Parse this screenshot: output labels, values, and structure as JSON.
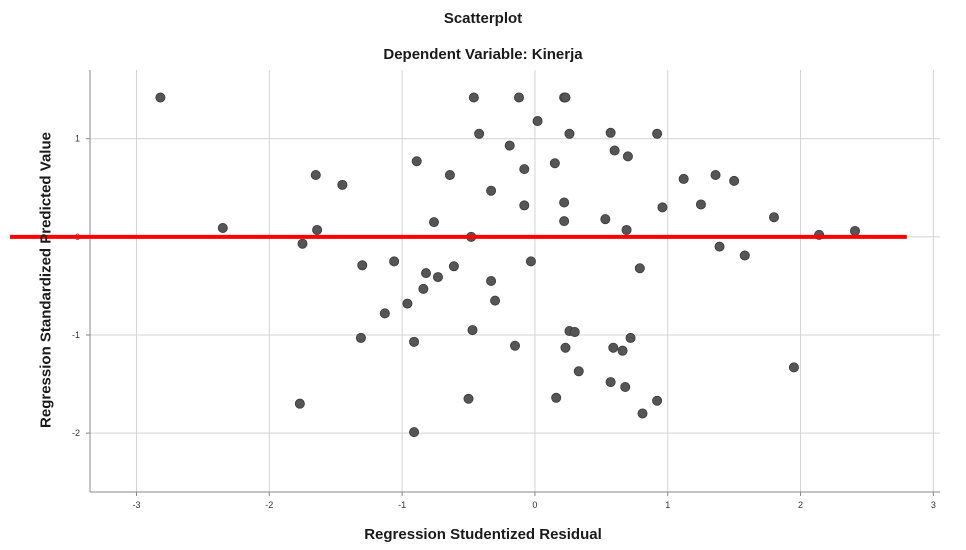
{
  "chart_data": {
    "type": "scatter",
    "title": "Scatterplot",
    "subtitle": "Dependent Variable: Kinerja",
    "xlabel": "Regression Studentized Residual",
    "ylabel": "Regression Standardized Predicted Value",
    "xlim": [
      -3.35,
      3.05
    ],
    "ylim": [
      -2.6,
      1.7
    ],
    "x_ticks": [
      -3,
      -2,
      -1,
      0,
      1,
      2,
      3
    ],
    "y_ticks": [
      1,
      0,
      -1,
      -2
    ],
    "grid": true,
    "point_color": "#555555",
    "reference_line": {
      "y": 0,
      "x_range": [
        -3.35,
        2.8
      ],
      "color": "#ff0000"
    },
    "points": [
      {
        "x": -2.82,
        "y": 1.42
      },
      {
        "x": -0.46,
        "y": 1.42
      },
      {
        "x": -0.12,
        "y": 1.42
      },
      {
        "x": 0.22,
        "y": 1.42
      },
      {
        "x": 0.23,
        "y": 1.42
      },
      {
        "x": 0.02,
        "y": 1.18
      },
      {
        "x": -0.42,
        "y": 1.05
      },
      {
        "x": 0.26,
        "y": 1.05
      },
      {
        "x": 0.57,
        "y": 1.06
      },
      {
        "x": 0.92,
        "y": 1.05
      },
      {
        "x": -0.19,
        "y": 0.93
      },
      {
        "x": 0.6,
        "y": 0.88
      },
      {
        "x": 0.7,
        "y": 0.82
      },
      {
        "x": -0.89,
        "y": 0.77
      },
      {
        "x": 0.15,
        "y": 0.75
      },
      {
        "x": -0.08,
        "y": 0.69
      },
      {
        "x": -1.65,
        "y": 0.63
      },
      {
        "x": -0.64,
        "y": 0.63
      },
      {
        "x": 1.12,
        "y": 0.59
      },
      {
        "x": 1.36,
        "y": 0.63
      },
      {
        "x": 1.5,
        "y": 0.57
      },
      {
        "x": -1.45,
        "y": 0.53
      },
      {
        "x": -0.33,
        "y": 0.47
      },
      {
        "x": 0.22,
        "y": 0.35
      },
      {
        "x": -0.08,
        "y": 0.32
      },
      {
        "x": 0.96,
        "y": 0.3
      },
      {
        "x": 1.25,
        "y": 0.33
      },
      {
        "x": 1.8,
        "y": 0.2
      },
      {
        "x": 0.22,
        "y": 0.16
      },
      {
        "x": 0.53,
        "y": 0.18
      },
      {
        "x": -0.76,
        "y": 0.15
      },
      {
        "x": 0.69,
        "y": 0.07
      },
      {
        "x": -2.35,
        "y": 0.09
      },
      {
        "x": -1.64,
        "y": 0.07
      },
      {
        "x": 2.41,
        "y": 0.06
      },
      {
        "x": 2.14,
        "y": 0.02
      },
      {
        "x": -0.48,
        "y": 0.0
      },
      {
        "x": -1.75,
        "y": -0.07
      },
      {
        "x": 1.39,
        "y": -0.1
      },
      {
        "x": 1.58,
        "y": -0.19
      },
      {
        "x": -1.3,
        "y": -0.29
      },
      {
        "x": -1.06,
        "y": -0.25
      },
      {
        "x": -0.03,
        "y": -0.25
      },
      {
        "x": -0.61,
        "y": -0.3
      },
      {
        "x": 0.79,
        "y": -0.32
      },
      {
        "x": -0.82,
        "y": -0.37
      },
      {
        "x": -0.73,
        "y": -0.41
      },
      {
        "x": -0.33,
        "y": -0.45
      },
      {
        "x": -0.84,
        "y": -0.53
      },
      {
        "x": -0.3,
        "y": -0.65
      },
      {
        "x": -0.96,
        "y": -0.68
      },
      {
        "x": -1.13,
        "y": -0.78
      },
      {
        "x": -0.47,
        "y": -0.95
      },
      {
        "x": 0.26,
        "y": -0.96
      },
      {
        "x": 0.3,
        "y": -0.97
      },
      {
        "x": -1.31,
        "y": -1.03
      },
      {
        "x": 0.72,
        "y": -1.03
      },
      {
        "x": -0.91,
        "y": -1.07
      },
      {
        "x": -0.15,
        "y": -1.11
      },
      {
        "x": 0.23,
        "y": -1.13
      },
      {
        "x": 0.59,
        "y": -1.13
      },
      {
        "x": 0.66,
        "y": -1.16
      },
      {
        "x": 1.95,
        "y": -1.33
      },
      {
        "x": 0.33,
        "y": -1.37
      },
      {
        "x": 0.57,
        "y": -1.48
      },
      {
        "x": 0.68,
        "y": -1.53
      },
      {
        "x": -1.77,
        "y": -1.7
      },
      {
        "x": -0.5,
        "y": -1.65
      },
      {
        "x": 0.16,
        "y": -1.64
      },
      {
        "x": 0.92,
        "y": -1.67
      },
      {
        "x": 0.81,
        "y": -1.8
      },
      {
        "x": -0.91,
        "y": -1.99
      }
    ]
  }
}
